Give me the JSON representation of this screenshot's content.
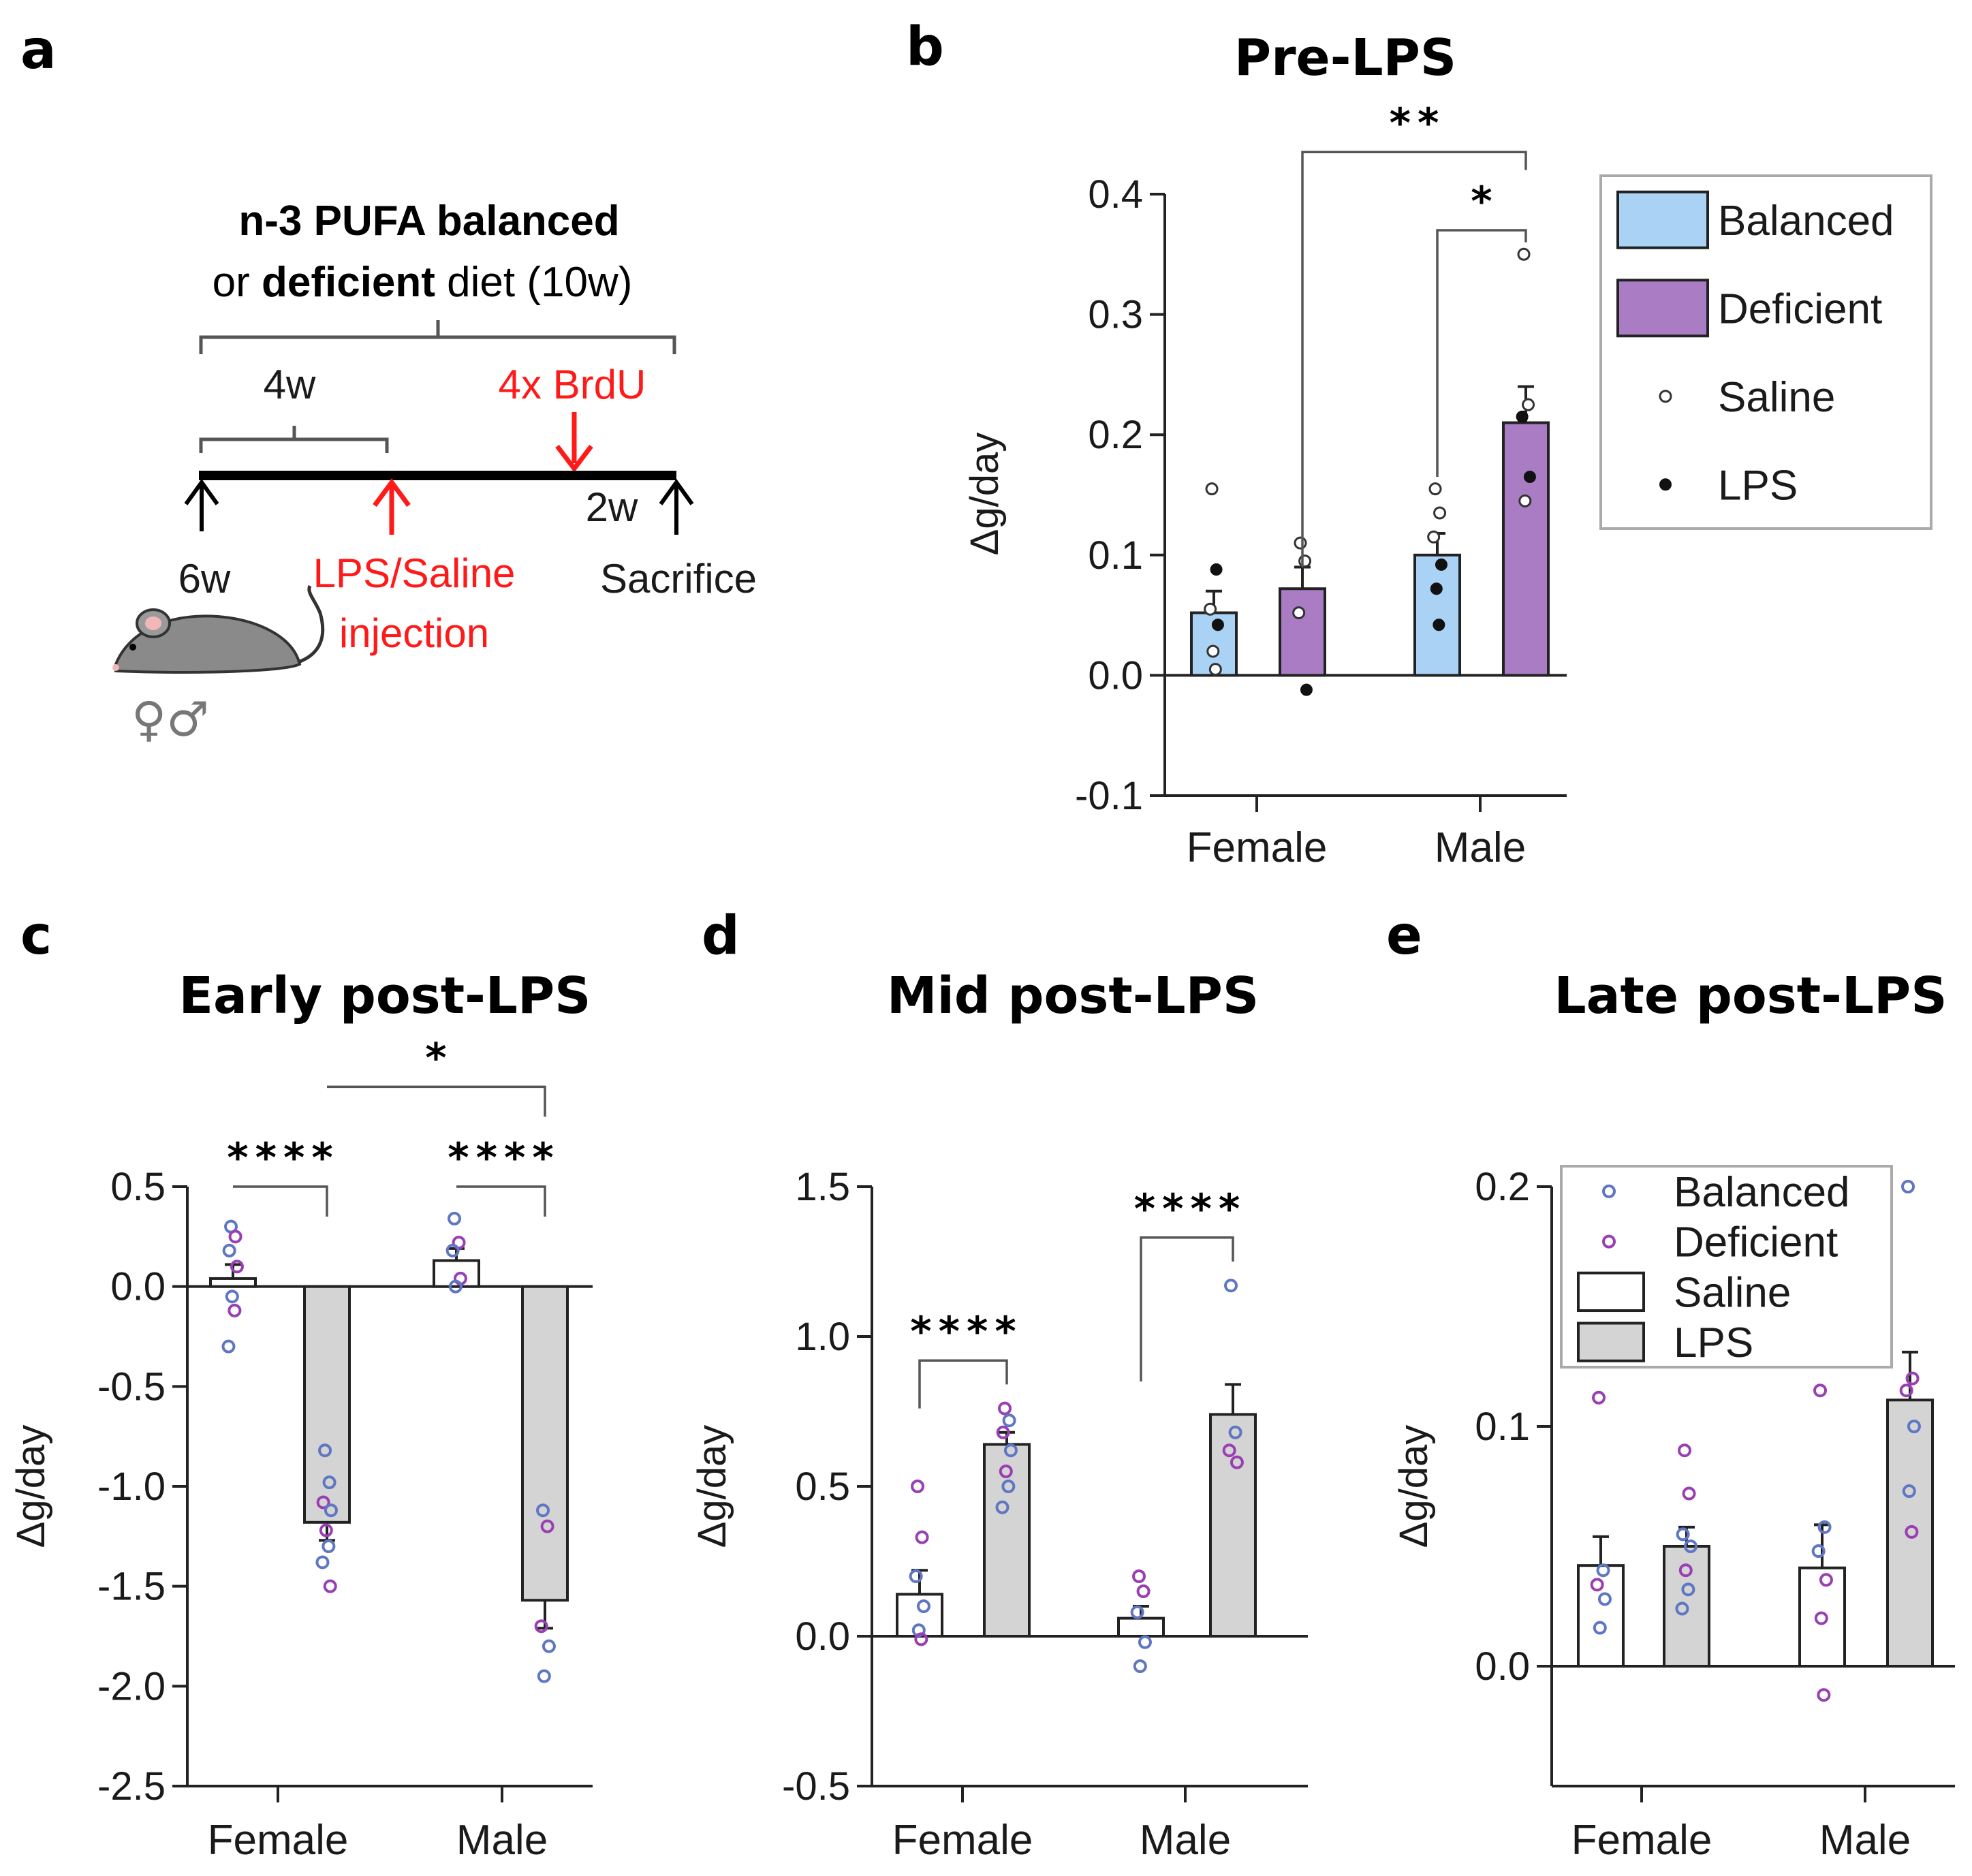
{
  "colors": {
    "balanced_fill": "#a9d2f5",
    "deficient_fill": "#a97cc4",
    "saline_fill": "#ffffff",
    "lps_fill": "#d4d4d4",
    "balanced_dot": "#5f77c2",
    "deficient_dot": "#9a3fb3",
    "accent_red": "#ff1a1a"
  },
  "schematic": {
    "label": "a",
    "diet_line1": "n-3 PUFA balanced",
    "diet_line2_prefix": "or ",
    "diet_line2_bold": "deficient",
    "diet_line2_suffix": " diet (10w)",
    "span_4w": "4w",
    "brdu": "4x BrdU",
    "span_2w": "2w",
    "age_start": "6w",
    "injection_line1": "LPS/Saline",
    "injection_line2": "injection",
    "sacrifice": "Sacrifice",
    "sexes": "♀♂"
  },
  "chart_data": [
    {
      "id": "b",
      "label": "b",
      "type": "bar",
      "title": "Pre-LPS",
      "ylabel": "Δg/day",
      "ylim": [
        -0.1,
        0.4
      ],
      "yticks": [
        "-0.1",
        "0.0",
        "0.1",
        "0.2",
        "0.3",
        "0.4"
      ],
      "categories": [
        "Female",
        "Male"
      ],
      "bars": [
        {
          "cat": 0,
          "group": "Balanced",
          "value": 0.052,
          "sem": 0.018,
          "fill": "balanced_fill",
          "points": [
            {
              "v": 0.155,
              "t": "Saline"
            },
            {
              "v": 0.088,
              "t": "LPS"
            },
            {
              "v": 0.055,
              "t": "Saline"
            },
            {
              "v": 0.042,
              "t": "LPS"
            },
            {
              "v": 0.02,
              "t": "Saline"
            },
            {
              "v": 0.005,
              "t": "Saline"
            }
          ]
        },
        {
          "cat": 0,
          "group": "Deficient",
          "value": 0.072,
          "sem": 0.018,
          "fill": "deficient_fill",
          "points": [
            {
              "v": 0.11,
              "t": "Saline"
            },
            {
              "v": 0.095,
              "t": "Saline"
            },
            {
              "v": 0.052,
              "t": "Saline"
            },
            {
              "v": -0.012,
              "t": "LPS"
            }
          ]
        },
        {
          "cat": 1,
          "group": "Balanced",
          "value": 0.1,
          "sem": 0.018,
          "fill": "balanced_fill",
          "points": [
            {
              "v": 0.155,
              "t": "Saline"
            },
            {
              "v": 0.135,
              "t": "Saline"
            },
            {
              "v": 0.115,
              "t": "Saline"
            },
            {
              "v": 0.092,
              "t": "LPS"
            },
            {
              "v": 0.072,
              "t": "LPS"
            },
            {
              "v": 0.042,
              "t": "LPS"
            }
          ]
        },
        {
          "cat": 1,
          "group": "Deficient",
          "value": 0.21,
          "sem": 0.03,
          "fill": "deficient_fill",
          "points": [
            {
              "v": 0.35,
              "t": "Saline"
            },
            {
              "v": 0.225,
              "t": "Saline"
            },
            {
              "v": 0.215,
              "t": "LPS"
            },
            {
              "v": 0.165,
              "t": "LPS"
            },
            {
              "v": 0.145,
              "t": "Saline"
            }
          ]
        }
      ],
      "brackets": [
        {
          "from": 1,
          "to": 3,
          "level": 0.435,
          "drop_from": 0.09,
          "drop_to": 0.42,
          "label": "**"
        },
        {
          "from": 2,
          "to": 3,
          "level": 0.37,
          "drop_from": 0.165,
          "drop_to": 0.36,
          "label": "*"
        }
      ],
      "legend": {
        "items": [
          {
            "kind": "box",
            "fill": "balanced_fill",
            "label": "Balanced"
          },
          {
            "kind": "box",
            "fill": "deficient_fill",
            "label": "Deficient"
          },
          {
            "kind": "dot_open",
            "label": "Saline"
          },
          {
            "kind": "dot_filled",
            "label": "LPS"
          }
        ]
      }
    },
    {
      "id": "c",
      "label": "c",
      "type": "bar",
      "title": "Early post-LPS",
      "ylabel": "Δg/day",
      "ylim": [
        -2.5,
        0.5
      ],
      "yticks": [
        "-2.5",
        "-2.0",
        "-1.5",
        "-1.0",
        "-0.5",
        "0.0",
        "0.5"
      ],
      "categories": [
        "Female",
        "Male"
      ],
      "bars": [
        {
          "cat": 0,
          "group": "Saline",
          "value": 0.04,
          "sem": 0.07,
          "fill": "saline_fill",
          "points": [
            {
              "v": 0.3,
              "t": "Balanced"
            },
            {
              "v": 0.25,
              "t": "Deficient"
            },
            {
              "v": 0.18,
              "t": "Balanced"
            },
            {
              "v": 0.1,
              "t": "Deficient"
            },
            {
              "v": -0.05,
              "t": "Balanced"
            },
            {
              "v": -0.12,
              "t": "Deficient"
            },
            {
              "v": -0.3,
              "t": "Balanced"
            }
          ]
        },
        {
          "cat": 0,
          "group": "LPS",
          "value": -1.18,
          "sem": 0.09,
          "fill": "lps_fill",
          "points": [
            {
              "v": -0.82,
              "t": "Balanced"
            },
            {
              "v": -0.98,
              "t": "Balanced"
            },
            {
              "v": -1.08,
              "t": "Deficient"
            },
            {
              "v": -1.12,
              "t": "Balanced"
            },
            {
              "v": -1.22,
              "t": "Deficient"
            },
            {
              "v": -1.3,
              "t": "Balanced"
            },
            {
              "v": -1.38,
              "t": "Balanced"
            },
            {
              "v": -1.5,
              "t": "Deficient"
            }
          ]
        },
        {
          "cat": 1,
          "group": "Saline",
          "value": 0.13,
          "sem": 0.06,
          "fill": "saline_fill",
          "points": [
            {
              "v": 0.34,
              "t": "Balanced"
            },
            {
              "v": 0.22,
              "t": "Deficient"
            },
            {
              "v": 0.18,
              "t": "Balanced"
            },
            {
              "v": 0.04,
              "t": "Deficient"
            },
            {
              "v": 0.0,
              "t": "Balanced"
            }
          ]
        },
        {
          "cat": 1,
          "group": "LPS",
          "value": -1.57,
          "sem": 0.14,
          "fill": "lps_fill",
          "points": [
            {
              "v": -1.12,
              "t": "Balanced"
            },
            {
              "v": -1.2,
              "t": "Deficient"
            },
            {
              "v": -1.7,
              "t": "Deficient"
            },
            {
              "v": -1.8,
              "t": "Balanced"
            },
            {
              "v": -1.95,
              "t": "Balanced"
            }
          ]
        }
      ],
      "brackets": [
        {
          "from": 0,
          "to": 1,
          "level": 0.5,
          "drop_from": 0.5,
          "drop_to": 0.35,
          "label": "****"
        },
        {
          "from": 2,
          "to": 3,
          "level": 0.5,
          "drop_from": 0.5,
          "drop_to": 0.35,
          "label": "****"
        },
        {
          "from": 1,
          "to": 3,
          "level": 1.0,
          "drop_from": 1.0,
          "drop_to": 0.85,
          "label": "*"
        }
      ]
    },
    {
      "id": "d",
      "label": "d",
      "type": "bar",
      "title": "Mid post-LPS",
      "ylabel": "Δg/day",
      "ylim": [
        -0.5,
        1.5
      ],
      "yticks": [
        "-0.5",
        "0.0",
        "0.5",
        "1.0",
        "1.5"
      ],
      "categories": [
        "Female",
        "Male"
      ],
      "bars": [
        {
          "cat": 0,
          "group": "Saline",
          "value": 0.14,
          "sem": 0.08,
          "fill": "saline_fill",
          "points": [
            {
              "v": 0.5,
              "t": "Deficient"
            },
            {
              "v": 0.33,
              "t": "Deficient"
            },
            {
              "v": 0.2,
              "t": "Balanced"
            },
            {
              "v": 0.1,
              "t": "Balanced"
            },
            {
              "v": 0.02,
              "t": "Balanced"
            },
            {
              "v": -0.01,
              "t": "Deficient"
            }
          ]
        },
        {
          "cat": 0,
          "group": "LPS",
          "value": 0.64,
          "sem": 0.04,
          "fill": "lps_fill",
          "points": [
            {
              "v": 0.76,
              "t": "Deficient"
            },
            {
              "v": 0.72,
              "t": "Balanced"
            },
            {
              "v": 0.68,
              "t": "Deficient"
            },
            {
              "v": 0.62,
              "t": "Balanced"
            },
            {
              "v": 0.55,
              "t": "Deficient"
            },
            {
              "v": 0.5,
              "t": "Balanced"
            },
            {
              "v": 0.43,
              "t": "Balanced"
            }
          ]
        },
        {
          "cat": 1,
          "group": "Saline",
          "value": 0.06,
          "sem": 0.04,
          "fill": "saline_fill",
          "points": [
            {
              "v": 0.2,
              "t": "Deficient"
            },
            {
              "v": 0.15,
              "t": "Deficient"
            },
            {
              "v": 0.08,
              "t": "Balanced"
            },
            {
              "v": -0.02,
              "t": "Balanced"
            },
            {
              "v": -0.1,
              "t": "Balanced"
            }
          ]
        },
        {
          "cat": 1,
          "group": "LPS",
          "value": 0.74,
          "sem": 0.1,
          "fill": "lps_fill",
          "points": [
            {
              "v": 1.17,
              "t": "Balanced"
            },
            {
              "v": 0.68,
              "t": "Balanced"
            },
            {
              "v": 0.62,
              "t": "Deficient"
            },
            {
              "v": 0.58,
              "t": "Deficient"
            }
          ]
        }
      ],
      "brackets": [
        {
          "from": 0,
          "to": 1,
          "level": 0.92,
          "drop_from": 0.76,
          "drop_to": 0.84,
          "label": "****"
        },
        {
          "from": 2,
          "to": 3,
          "level": 1.33,
          "drop_from": 0.85,
          "drop_to": 1.25,
          "label": "****"
        }
      ]
    },
    {
      "id": "e",
      "label": "e",
      "type": "bar",
      "title": "Late post-LPS",
      "ylabel": "Δg/day",
      "ylim": [
        -0.05,
        0.2
      ],
      "yticks": [
        "0.0",
        "0.1",
        "0.2"
      ],
      "categories": [
        "Female",
        "Male"
      ],
      "bars": [
        {
          "cat": 0,
          "group": "Saline",
          "value": 0.042,
          "sem": 0.012,
          "fill": "saline_fill",
          "points": [
            {
              "v": 0.112,
              "t": "Deficient"
            },
            {
              "v": 0.04,
              "t": "Balanced"
            },
            {
              "v": 0.034,
              "t": "Deficient"
            },
            {
              "v": 0.028,
              "t": "Balanced"
            },
            {
              "v": 0.016,
              "t": "Balanced"
            }
          ]
        },
        {
          "cat": 0,
          "group": "LPS",
          "value": 0.05,
          "sem": 0.008,
          "fill": "lps_fill",
          "points": [
            {
              "v": 0.09,
              "t": "Deficient"
            },
            {
              "v": 0.072,
              "t": "Deficient"
            },
            {
              "v": 0.055,
              "t": "Balanced"
            },
            {
              "v": 0.05,
              "t": "Balanced"
            },
            {
              "v": 0.04,
              "t": "Deficient"
            },
            {
              "v": 0.032,
              "t": "Balanced"
            },
            {
              "v": 0.024,
              "t": "Balanced"
            }
          ]
        },
        {
          "cat": 1,
          "group": "Saline",
          "value": 0.041,
          "sem": 0.018,
          "fill": "saline_fill",
          "points": [
            {
              "v": 0.115,
              "t": "Deficient"
            },
            {
              "v": 0.058,
              "t": "Balanced"
            },
            {
              "v": 0.048,
              "t": "Balanced"
            },
            {
              "v": 0.036,
              "t": "Deficient"
            },
            {
              "v": 0.02,
              "t": "Deficient"
            },
            {
              "v": -0.012,
              "t": "Deficient"
            }
          ]
        },
        {
          "cat": 1,
          "group": "LPS",
          "value": 0.111,
          "sem": 0.02,
          "fill": "lps_fill",
          "points": [
            {
              "v": 0.2,
              "t": "Balanced"
            },
            {
              "v": 0.12,
              "t": "Deficient"
            },
            {
              "v": 0.115,
              "t": "Deficient"
            },
            {
              "v": 0.1,
              "t": "Balanced"
            },
            {
              "v": 0.073,
              "t": "Balanced"
            },
            {
              "v": 0.056,
              "t": "Deficient"
            }
          ]
        }
      ],
      "brackets": [],
      "legend": {
        "items": [
          {
            "kind": "dot_balanced",
            "label": "Balanced"
          },
          {
            "kind": "dot_deficient",
            "label": "Deficient"
          },
          {
            "kind": "box",
            "fill": "saline_fill",
            "label": "Saline"
          },
          {
            "kind": "box",
            "fill": "lps_fill",
            "label": "LPS"
          }
        ]
      }
    }
  ]
}
